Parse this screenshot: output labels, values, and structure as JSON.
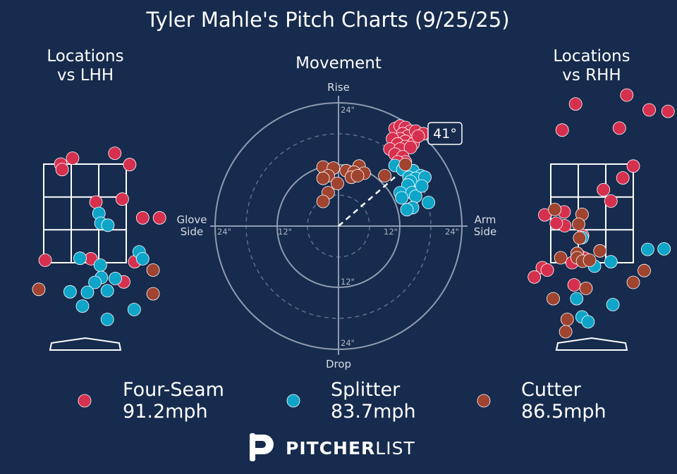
{
  "title": "Tyler Mahle's Pitch Charts (9/25/25)",
  "panels": {
    "left_title_line1": "Locations",
    "left_title_line2": "vs LHH",
    "center_title": "Movement",
    "right_title_line1": "Locations",
    "right_title_line2": "vs RHH"
  },
  "movement_axes": {
    "rise": "Rise",
    "drop": "Drop",
    "glove_line1": "Glove",
    "glove_line2": "Side",
    "arm_line1": "Arm",
    "arm_line2": "Side",
    "ring_labels": [
      "24\"",
      "12\"",
      "12\"",
      "24\"",
      "24\"",
      "12\"",
      "24\""
    ],
    "arm_angle_label": "41°"
  },
  "legend": [
    {
      "name": "Four-Seam",
      "velo": "91.2mph",
      "color": "#d6304f"
    },
    {
      "name": "Splitter",
      "velo": "83.7mph",
      "color": "#0ea5c9"
    },
    {
      "name": "Cutter",
      "velo": "86.5mph",
      "color": "#a0432f"
    }
  ],
  "brand": {
    "name_bold": "PITCHER",
    "name_light": "LIST"
  },
  "chart_data": {
    "type": "scatter",
    "title": "Tyler Mahle's Pitch Charts (9/25/25)",
    "arm_angle_deg": 41,
    "movement": {
      "xlabel_left": "Glove Side",
      "xlabel_right": "Arm Side",
      "ylabel_top": "Rise",
      "ylabel_bottom": "Drop",
      "xlim": [
        -24,
        24
      ],
      "ylim": [
        -24,
        24
      ],
      "unit": "inches",
      "series": [
        {
          "name": "Four-Seam",
          "color": "#d6304f",
          "points": [
            [
              11,
              19
            ],
            [
              12,
              19.5
            ],
            [
              13,
              19.2
            ],
            [
              14,
              18.5
            ],
            [
              12.5,
              18
            ],
            [
              13.5,
              17.5
            ],
            [
              15,
              18.5
            ],
            [
              16.5,
              18
            ],
            [
              12,
              17
            ],
            [
              13,
              16.5
            ],
            [
              14.5,
              16
            ],
            [
              10.5,
              17
            ],
            [
              11.5,
              16
            ],
            [
              13,
              15.5
            ],
            [
              10,
              15
            ],
            [
              12,
              15
            ],
            [
              14,
              15.3
            ],
            [
              11,
              14
            ],
            [
              12.5,
              13.5
            ],
            [
              13,
              12.5
            ],
            [
              11.5,
              12.5
            ],
            [
              15.5,
              17.5
            ]
          ]
        },
        {
          "name": "Splitter",
          "color": "#0ea5c9",
          "points": [
            [
              11,
              11.8
            ],
            [
              12.5,
              11
            ],
            [
              14.5,
              10.8
            ],
            [
              16,
              9.8
            ],
            [
              15.5,
              8.5
            ],
            [
              13.7,
              9.5
            ],
            [
              15,
              9.3
            ],
            [
              14,
              8.7
            ],
            [
              16.8,
              9.5
            ],
            [
              13.5,
              8
            ],
            [
              12,
              6.5
            ],
            [
              14.3,
              6.5
            ],
            [
              15,
              5.8
            ],
            [
              12.3,
              5.5
            ],
            [
              17.5,
              4.6
            ],
            [
              14.4,
              3.6
            ],
            [
              13.3,
              3.2
            ],
            [
              16.2,
              7.8
            ]
          ]
        },
        {
          "name": "Cutter",
          "color": "#a0432f",
          "points": [
            [
              4,
              11.7
            ],
            [
              -3,
              11.5
            ],
            [
              -1,
              11.3
            ],
            [
              1.5,
              10.8
            ],
            [
              3,
              10.5
            ],
            [
              5,
              10.3
            ],
            [
              9,
              9.8
            ],
            [
              -2,
              9.8
            ],
            [
              -3,
              9.3
            ],
            [
              2.5,
              9.5
            ],
            [
              3.7,
              9.8
            ],
            [
              13,
              12
            ],
            [
              -0.2,
              8.3
            ],
            [
              -2,
              6.5
            ],
            [
              -3,
              4.8
            ]
          ]
        }
      ]
    },
    "locations_vs_lhh": {
      "series": [
        {
          "name": "Four-Seam",
          "color": "#d6304f",
          "points": [
            [
              -0.25,
              3.62
            ],
            [
              -0.49,
              3.5
            ],
            [
              -0.46,
              3.39
            ],
            [
              0.6,
              3.72
            ],
            [
              0.9,
              3.49
            ],
            [
              0.75,
              2.79
            ],
            [
              0.22,
              2.73
            ],
            [
              1.16,
              2.41
            ],
            [
              1.5,
              2.41
            ],
            [
              -0.8,
              1.55
            ],
            [
              0.12,
              1.58
            ],
            [
              1.0,
              1.52
            ],
            [
              0.78,
              1.11
            ]
          ]
        },
        {
          "name": "Splitter",
          "color": "#0ea5c9",
          "points": [
            [
              0.28,
              2.5
            ],
            [
              0.32,
              2.3
            ],
            [
              0.46,
              2.26
            ],
            [
              1.09,
              1.72
            ],
            [
              1.16,
              1.58
            ],
            [
              -0.1,
              1.59
            ],
            [
              0.31,
              1.45
            ],
            [
              0.33,
              1.2
            ],
            [
              0.2,
              1.1
            ],
            [
              0.61,
              1.18
            ],
            [
              -0.3,
              0.91
            ],
            [
              0.05,
              0.9
            ],
            [
              0.45,
              0.93
            ],
            [
              -0.05,
              0.62
            ],
            [
              0.99,
              0.55
            ],
            [
              0.45,
              0.35
            ]
          ]
        },
        {
          "name": "Cutter",
          "color": "#a0432f",
          "points": [
            [
              -0.93,
              0.96
            ],
            [
              1.37,
              1.35
            ],
            [
              1.37,
              0.87
            ]
          ]
        }
      ]
    },
    "locations_vs_rhh": {
      "series": [
        {
          "name": "Four-Seam",
          "color": "#d6304f",
          "points": [
            [
              0.7,
              4.9
            ],
            [
              -0.33,
              4.72
            ],
            [
              1.15,
              4.6
            ],
            [
              1.53,
              4.57
            ],
            [
              -0.6,
              4.19
            ],
            [
              0.55,
              4.23
            ],
            [
              0.83,
              3.46
            ],
            [
              0.62,
              3.22
            ],
            [
              0.23,
              2.98
            ],
            [
              0.38,
              2.75
            ],
            [
              -0.56,
              2.53
            ],
            [
              -0.95,
              2.47
            ],
            [
              -0.55,
              2.25
            ],
            [
              -0.72,
              2.3
            ],
            [
              -0.19,
              2.05
            ],
            [
              -1.0,
              1.4
            ],
            [
              -0.9,
              1.35
            ],
            [
              -0.4,
              1.5
            ],
            [
              -0.23,
              1.62
            ],
            [
              -0.15,
              1.59
            ],
            [
              -0.36,
              1.05
            ],
            [
              -1.16,
              1.21
            ]
          ]
        },
        {
          "name": "Splitter",
          "color": "#0ea5c9",
          "points": [
            [
              -0.2,
              2.01
            ],
            [
              0.38,
              1.52
            ],
            [
              1.12,
              1.77
            ],
            [
              1.45,
              1.78
            ],
            [
              0.05,
              1.43
            ],
            [
              -0.31,
              0.77
            ],
            [
              0.42,
              0.65
            ],
            [
              -0.2,
              0.4
            ],
            [
              -0.08,
              0.3
            ]
          ]
        },
        {
          "name": "Cutter",
          "color": "#a0432f",
          "points": [
            [
              -0.75,
              2.58
            ],
            [
              -0.2,
              2.48
            ],
            [
              -0.27,
              2.28
            ],
            [
              -0.25,
              2.0
            ],
            [
              0.16,
              1.74
            ],
            [
              -0.3,
              1.69
            ],
            [
              -0.63,
              1.6
            ],
            [
              -0.3,
              1.6
            ],
            [
              -0.19,
              1.53
            ],
            [
              -0.05,
              1.55
            ],
            [
              1.05,
              1.34
            ],
            [
              0.83,
              1.1
            ],
            [
              -0.78,
              0.77
            ],
            [
              -0.12,
              0.98
            ],
            [
              -0.5,
              0.35
            ],
            [
              -0.53,
              0.1
            ]
          ]
        }
      ]
    }
  }
}
